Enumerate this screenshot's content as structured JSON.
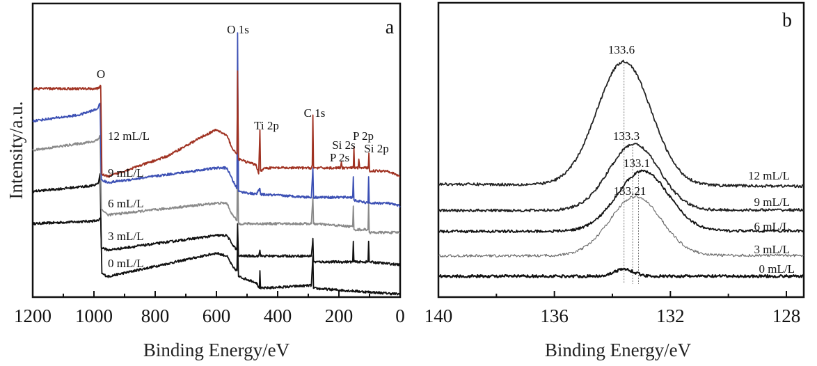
{
  "chart_data": [
    {
      "panel": "a",
      "type": "line",
      "xlabel": "Binding Energy/eV",
      "ylabel": "Intensity/a.u.",
      "xlim": [
        1200,
        0
      ],
      "ylim": [
        0,
        100
      ],
      "x_reversed": true,
      "xticks": [
        1200,
        1000,
        800,
        600,
        400,
        200,
        0
      ],
      "yticks": [],
      "grid": false,
      "peak_labels": [
        "O",
        "O 1s",
        "Ti 2p",
        "C 1s",
        "P 2p",
        "Si 2s",
        "Si 2p",
        "P 2s"
      ],
      "series": [
        {
          "name": "0 mL/L",
          "color": "#111111",
          "points": [
            [
              1200,
              25
            ],
            [
              985,
              26
            ],
            [
              978,
              27
            ],
            [
              974,
              8
            ],
            [
              955,
              7
            ],
            [
              600,
              15
            ],
            [
              566,
              14
            ],
            [
              545,
              10
            ],
            [
              533,
              9
            ],
            [
              531,
              21
            ],
            [
              528,
              7
            ],
            [
              470,
              5
            ],
            [
              460,
              3
            ],
            [
              458,
              9
            ],
            [
              456,
              3
            ],
            [
              290,
              4
            ],
            [
              285,
              14
            ],
            [
              283,
              3
            ],
            [
              0,
              1
            ]
          ]
        },
        {
          "name": "3 mL/L",
          "color": "#111111",
          "points": [
            [
              1200,
              36
            ],
            [
              1000,
              38
            ],
            [
              985,
              39
            ],
            [
              980,
              42
            ],
            [
              976,
              17
            ],
            [
              955,
              16
            ],
            [
              600,
              21
            ],
            [
              566,
              21
            ],
            [
              548,
              18
            ],
            [
              533,
              16
            ],
            [
              531,
              25
            ],
            [
              528,
              14
            ],
            [
              462,
              14
            ],
            [
              458,
              16
            ],
            [
              456,
              14
            ],
            [
              290,
              14
            ],
            [
              285,
              20
            ],
            [
              283,
              12
            ],
            [
              155,
              12
            ],
            [
              153,
              19
            ],
            [
              151,
              12
            ],
            [
              105,
              12
            ],
            [
              103,
              19
            ],
            [
              101,
              12
            ],
            [
              0,
              11
            ]
          ]
        },
        {
          "name": "6 mL/L",
          "color": "#8a8a8a",
          "points": [
            [
              1200,
              50
            ],
            [
              1000,
              53
            ],
            [
              985,
              54
            ],
            [
              980,
              55
            ],
            [
              976,
              30
            ],
            [
              955,
              28
            ],
            [
              600,
              32
            ],
            [
              566,
              32
            ],
            [
              548,
              28
            ],
            [
              533,
              26
            ],
            [
              531,
              49
            ],
            [
              528,
              25
            ],
            [
              470,
              25
            ],
            [
              290,
              25
            ],
            [
              285,
              34
            ],
            [
              283,
              25
            ],
            [
              155,
              24
            ],
            [
              153,
              31
            ],
            [
              151,
              23
            ],
            [
              105,
              23
            ],
            [
              103,
              32
            ],
            [
              101,
              22
            ],
            [
              0,
              22
            ]
          ]
        },
        {
          "name": "9 mL/L",
          "color": "#3c50b4",
          "points": [
            [
              1200,
              60
            ],
            [
              1050,
              62
            ],
            [
              990,
              64
            ],
            [
              980,
              66
            ],
            [
              976,
              40
            ],
            [
              955,
              39
            ],
            [
              600,
              44
            ],
            [
              566,
              44
            ],
            [
              548,
              40
            ],
            [
              533,
              37
            ],
            [
              531,
              90
            ],
            [
              528,
              36
            ],
            [
              470,
              35
            ],
            [
              458,
              37
            ],
            [
              456,
              35
            ],
            [
              290,
              34
            ],
            [
              285,
              44
            ],
            [
              283,
              34
            ],
            [
              155,
              34
            ],
            [
              153,
              41
            ],
            [
              151,
              33
            ],
            [
              105,
              32
            ],
            [
              103,
              41
            ],
            [
              101,
              32
            ],
            [
              40,
              32
            ],
            [
              0,
              31
            ]
          ]
        },
        {
          "name": "12 mL/L",
          "color": "#a03222",
          "points": [
            [
              1200,
              71
            ],
            [
              985,
              71
            ],
            [
              978,
              72
            ],
            [
              974,
              42
            ],
            [
              955,
              41
            ],
            [
              760,
              48
            ],
            [
              640,
              55
            ],
            [
              600,
              57
            ],
            [
              566,
              55
            ],
            [
              545,
              50
            ],
            [
              533,
              49
            ],
            [
              531,
              77
            ],
            [
              528,
              47
            ],
            [
              500,
              46
            ],
            [
              470,
              45
            ],
            [
              462,
              42
            ],
            [
              458,
              57
            ],
            [
              456,
              43
            ],
            [
              440,
              44
            ],
            [
              290,
              44
            ],
            [
              287,
              45
            ],
            [
              285,
              62
            ],
            [
              283,
              44
            ],
            [
              195,
              44
            ],
            [
              192,
              46
            ],
            [
              189,
              44
            ],
            [
              153,
              44
            ],
            [
              151,
              51
            ],
            [
              149,
              44
            ],
            [
              137,
              44
            ],
            [
              135,
              47
            ],
            [
              132,
              44
            ],
            [
              104,
              44
            ],
            [
              102,
              49
            ],
            [
              100,
              43
            ],
            [
              40,
              43
            ],
            [
              20,
              42
            ],
            [
              0,
              41
            ]
          ]
        }
      ]
    },
    {
      "panel": "b",
      "type": "line",
      "xlabel": "Binding Energy/eV",
      "ylabel": "",
      "xlim": [
        140,
        127.4
      ],
      "ylim": [
        0,
        100
      ],
      "x_reversed": true,
      "xticks": [
        140,
        136,
        132,
        128
      ],
      "yticks": [],
      "grid": false,
      "peak_labels": [
        "133.6",
        "133.3",
        "133.1",
        "133.21"
      ],
      "dashed_lines": [
        133.6,
        133.3,
        133.1
      ],
      "series": [
        {
          "name": "12 mL/L",
          "color": "#222222",
          "baseline": [
            38.4,
            37.7
          ],
          "peak_center": 133.6,
          "peak_height": 42,
          "fwhm": 2.2
        },
        {
          "name": "9 mL/L",
          "color": "#222222",
          "baseline": [
            29.4,
            29.6
          ],
          "peak_center": 133.25,
          "peak_height": 22.5,
          "fwhm": 2.05
        },
        {
          "name": "6 mL/L",
          "color": "#111111",
          "baseline": [
            22.3,
            22.5
          ],
          "peak_center": 132.95,
          "peak_height": 20.4,
          "fwhm": 2.1
        },
        {
          "name": "3 mL/L",
          "color": "#666666",
          "baseline": [
            14.0,
            14.2
          ],
          "peak_center": 133.2,
          "peak_height": 20,
          "fwhm": 2.1
        },
        {
          "name": "0 mL/L",
          "color": "#111111",
          "baseline": [
            7.1,
            7.1
          ],
          "peak_center": 133.6,
          "peak_height": 2.4,
          "fwhm": 0.8
        }
      ]
    }
  ]
}
